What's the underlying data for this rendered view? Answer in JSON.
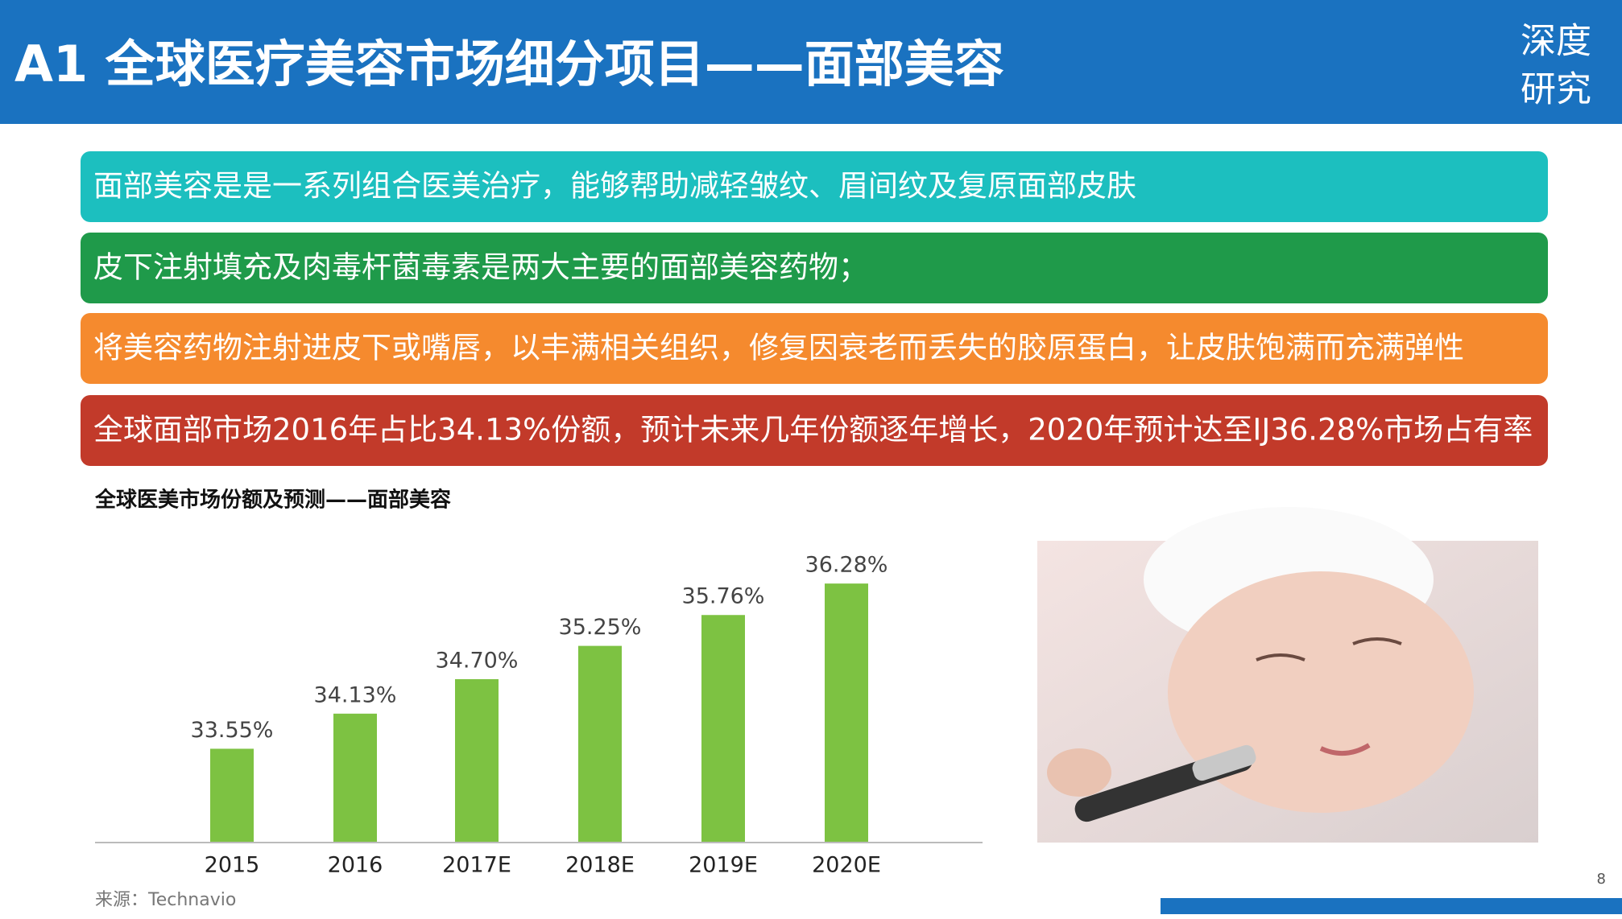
{
  "header": {
    "title": "A1 全球医疗美容市场细分项目——面部美容",
    "logo": [
      "深度",
      "研究"
    ]
  },
  "bullets": [
    {
      "text": "面部美容是是一系列组合医美治疗，能够帮助减轻皱纹、眉间纹及复原面部皮肤",
      "color": "#1cbfbf"
    },
    {
      "text": "皮下注射填充及肉毒杆菌毒素是两大主要的面部美容药物；",
      "color": "#1f9a4a"
    },
    {
      "text": "将美容药物注射进皮下或嘴唇，以丰满相关组织，修复因衰老而丢失的胶原蛋白，让皮肤饱满而充满弹性",
      "color": "#f58a2e"
    },
    {
      "text": "全球面部市场2016年占比34.13%份额，预计未来几年份额逐年增长，2020年预计达至IJ36.28%市场占有率",
      "color": "#c23a2a"
    }
  ],
  "chart_data": {
    "type": "bar",
    "title": "全球医美市场份额及预测——面部美容",
    "categories": [
      "2015",
      "2016",
      "2017E",
      "2018E",
      "2019E",
      "2020E"
    ],
    "values": [
      33.55,
      34.13,
      34.7,
      35.25,
      35.76,
      36.28
    ],
    "value_labels": [
      "33.55%",
      "34.13%",
      "34.70%",
      "35.25%",
      "35.76%",
      "36.28%"
    ],
    "color": "#7dc242",
    "ylim": [
      32,
      37
    ]
  },
  "source": "来源：Technavio",
  "page_number": "8"
}
